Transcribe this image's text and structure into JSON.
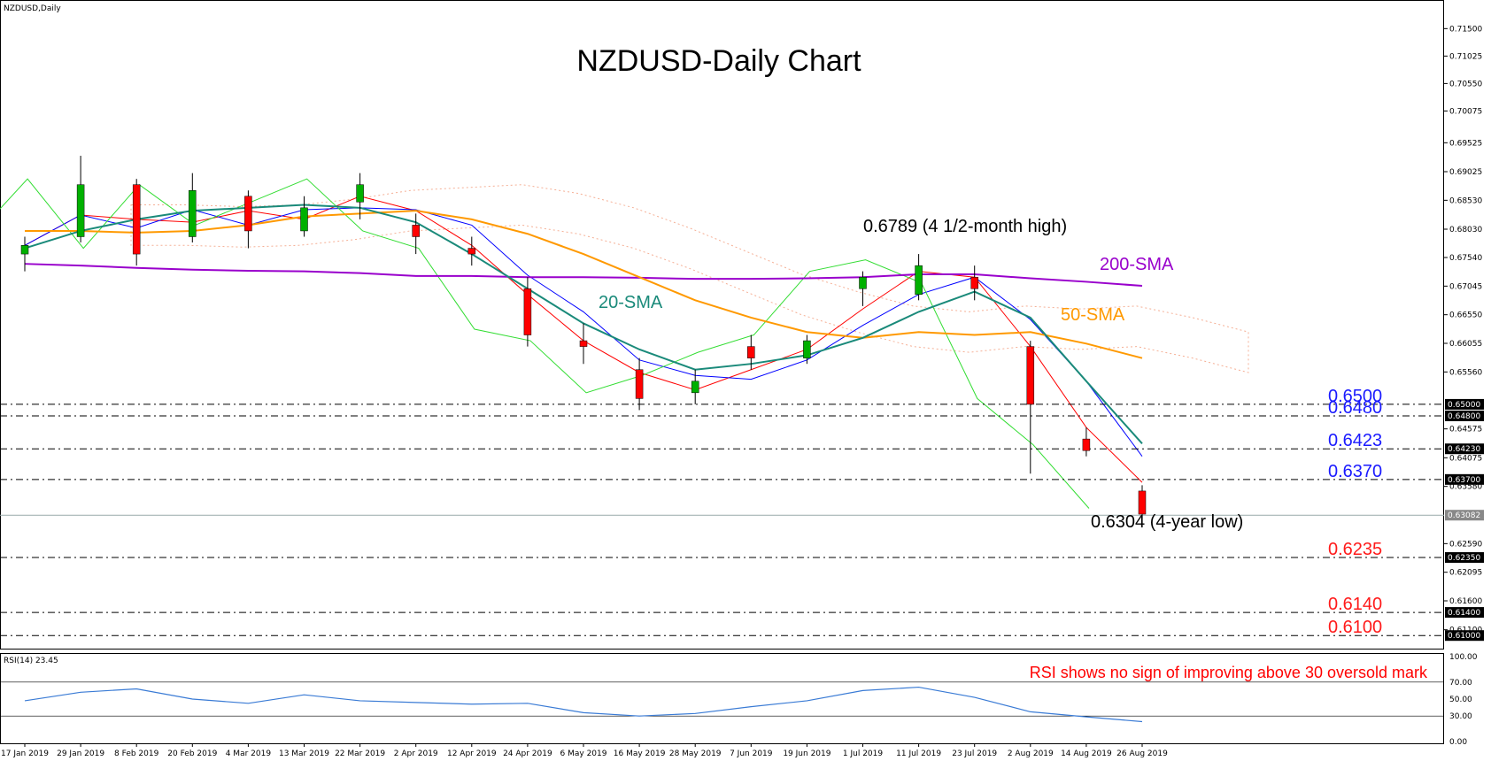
{
  "chart_data": [
    {
      "type": "line",
      "symbol_label": "NZDUSD,Daily",
      "title": "NZDUSD-Daily Chart",
      "x_tick_labels": [
        "17 Jan 2019",
        "29 Jan 2019",
        "8 Feb 2019",
        "20 Feb 2019",
        "4 Mar 2019",
        "13 Mar 2019",
        "22 Mar 2019",
        "2 Apr 2019",
        "12 Apr 2019",
        "24 Apr 2019",
        "6 May 2019",
        "16 May 2019",
        "28 May 2019",
        "7 Jun 2019",
        "19 Jun 2019",
        "1 Jul 2019",
        "11 Jul 2019",
        "23 Jul 2019",
        "2 Aug 2019",
        "14 Aug 2019",
        "26 Aug 2019"
      ],
      "y_tick_labels": [
        "0.71500",
        "0.71025",
        "0.70550",
        "0.70075",
        "0.69525",
        "0.69025",
        "0.68530",
        "0.68030",
        "0.67540",
        "0.67045",
        "0.66550",
        "0.66055",
        "0.65560",
        "0.65000",
        "0.64800",
        "0.64575",
        "0.64230",
        "0.64075",
        "0.63700",
        "0.63580",
        "0.63082",
        "0.62590",
        "0.62350",
        "0.62095",
        "0.61600",
        "0.61400",
        "0.61100",
        "0.61000"
      ],
      "ylim": [
        0.6085,
        0.7175
      ],
      "series": [
        {
          "name": "200-SMA",
          "color": "#9900cc",
          "values": [
            0.6743,
            0.674,
            0.6736,
            0.6733,
            0.6731,
            0.673,
            0.6727,
            0.6722,
            0.6722,
            0.672,
            0.672,
            0.6719,
            0.6717,
            0.6717,
            0.6718,
            0.672,
            0.6725,
            0.6725,
            0.6718,
            0.6712,
            0.6705
          ]
        },
        {
          "name": "50-SMA",
          "color": "#ff9900",
          "values": [
            0.68,
            0.68,
            0.6797,
            0.68,
            0.681,
            0.6825,
            0.683,
            0.6835,
            0.682,
            0.6795,
            0.676,
            0.672,
            0.668,
            0.665,
            0.6625,
            0.6615,
            0.6625,
            0.662,
            0.6625,
            0.6605,
            0.658
          ]
        },
        {
          "name": "20-SMA",
          "color": "#1a8a7a",
          "values": [
            0.677,
            0.68,
            0.682,
            0.6835,
            0.684,
            0.6845,
            0.684,
            0.6815,
            0.676,
            0.67,
            0.664,
            0.6595,
            0.656,
            0.657,
            0.6585,
            0.6615,
            0.666,
            0.6695,
            0.665,
            0.654,
            0.6432
          ]
        }
      ],
      "candles": [
        {
          "d": "17 Jan 2019",
          "o": 0.676,
          "h": 0.679,
          "l": 0.673,
          "c": 0.6775
        },
        {
          "d": "29 Jan 2019",
          "o": 0.679,
          "h": 0.693,
          "l": 0.678,
          "c": 0.688
        },
        {
          "d": "8 Feb 2019",
          "o": 0.688,
          "h": 0.689,
          "l": 0.674,
          "c": 0.676
        },
        {
          "d": "20 Feb 2019",
          "o": 0.679,
          "h": 0.69,
          "l": 0.678,
          "c": 0.687
        },
        {
          "d": "4 Mar 2019",
          "o": 0.686,
          "h": 0.687,
          "l": 0.677,
          "c": 0.68
        },
        {
          "d": "13 Mar 2019",
          "o": 0.68,
          "h": 0.686,
          "l": 0.679,
          "c": 0.684
        },
        {
          "d": "22 Mar 2019",
          "o": 0.685,
          "h": 0.69,
          "l": 0.682,
          "c": 0.688
        },
        {
          "d": "2 Apr 2019",
          "o": 0.681,
          "h": 0.683,
          "l": 0.676,
          "c": 0.679
        },
        {
          "d": "12 Apr 2019",
          "o": 0.677,
          "h": 0.679,
          "l": 0.674,
          "c": 0.676
        },
        {
          "d": "24 Apr 2019",
          "o": 0.67,
          "h": 0.672,
          "l": 0.66,
          "c": 0.662
        },
        {
          "d": "6 May 2019",
          "o": 0.661,
          "h": 0.664,
          "l": 0.657,
          "c": 0.66
        },
        {
          "d": "16 May 2019",
          "o": 0.656,
          "h": 0.658,
          "l": 0.649,
          "c": 0.651
        },
        {
          "d": "28 May 2019",
          "o": 0.652,
          "h": 0.656,
          "l": 0.65,
          "c": 0.654
        },
        {
          "d": "7 Jun 2019",
          "o": 0.66,
          "h": 0.662,
          "l": 0.656,
          "c": 0.658
        },
        {
          "d": "19 Jun 2019",
          "o": 0.658,
          "h": 0.662,
          "l": 0.657,
          "c": 0.661
        },
        {
          "d": "1 Jul 2019",
          "o": 0.67,
          "h": 0.673,
          "l": 0.667,
          "c": 0.672
        },
        {
          "d": "11 Jul 2019",
          "o": 0.669,
          "h": 0.676,
          "l": 0.668,
          "c": 0.674
        },
        {
          "d": "23 Jul 2019",
          "o": 0.672,
          "h": 0.674,
          "l": 0.668,
          "c": 0.67
        },
        {
          "d": "2 Aug 2019",
          "o": 0.66,
          "h": 0.661,
          "l": 0.638,
          "c": 0.65
        },
        {
          "d": "14 Aug 2019",
          "o": 0.644,
          "h": 0.646,
          "l": 0.641,
          "c": 0.642
        },
        {
          "d": "26 Aug 2019",
          "o": 0.635,
          "h": 0.636,
          "l": 0.6304,
          "c": 0.631
        }
      ],
      "horizontal_levels": [
        {
          "value": 0.65,
          "label": "0.6500",
          "tag": "0.65000",
          "color": "#1a1aff"
        },
        {
          "value": 0.648,
          "label": "0.6480",
          "tag": "0.64800",
          "color": "#1a1aff"
        },
        {
          "value": 0.6423,
          "label": "0.6423",
          "tag": "0.64230",
          "color": "#1a1aff"
        },
        {
          "value": 0.637,
          "label": "0.6370",
          "tag": "0.63700",
          "color": "#1a1aff"
        },
        {
          "value": 0.6235,
          "label": "0.6235",
          "tag": "0.62350",
          "color": "#ff1a1a"
        },
        {
          "value": 0.614,
          "label": "0.6140",
          "tag": "0.61400",
          "color": "#ff1a1a"
        },
        {
          "value": 0.61,
          "label": "0.6100",
          "tag": "0.61000",
          "color": "#ff1a1a"
        }
      ],
      "current_price_tag": {
        "value": 0.63082,
        "label": "0.63082"
      },
      "annotations": {
        "high": {
          "label": "0.6789 (4 1/2-month high)",
          "value": 0.6789
        },
        "low": {
          "label": "0.6304 (4-year low)",
          "value": 0.6304
        },
        "sma200_label": "200-SMA",
        "sma50_label": "50-SMA",
        "sma20_label": "20-SMA"
      },
      "colors": {
        "bull": "#00b000",
        "bear": "#ff0000",
        "tenkan": "#ff0000",
        "kijun": "#0000ff",
        "chikou": "#33dd33",
        "cloud": "#f4a68a"
      }
    },
    {
      "type": "line",
      "panel_label": "RSI(14) 23.45",
      "ylim": [
        0,
        100
      ],
      "y_tick_labels": [
        "100.00",
        "70.00",
        "50.00",
        "30.00",
        "0.00"
      ],
      "levels": [
        70,
        30
      ],
      "series": [
        {
          "name": "RSI(14)",
          "color": "#3a7bd5",
          "values": [
            48,
            58,
            62,
            50,
            45,
            55,
            48,
            46,
            44,
            45,
            34,
            30,
            33,
            41,
            48,
            60,
            64,
            52,
            35,
            29,
            23.45
          ]
        }
      ],
      "annotation": "RSI shows no sign of improving above 30 oversold mark"
    }
  ]
}
